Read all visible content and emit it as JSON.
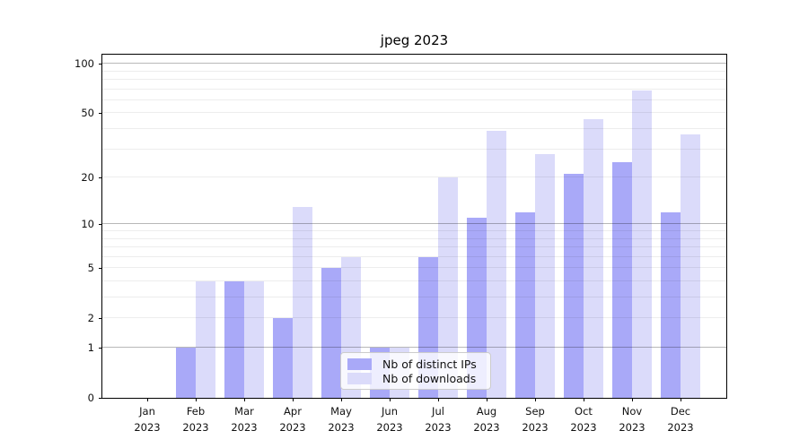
{
  "header": {
    "title": "jpeg 2023"
  },
  "chart_data": {
    "type": "bar",
    "title": "jpeg 2023",
    "categories": [
      {
        "month": "Jan",
        "year": "2023"
      },
      {
        "month": "Feb",
        "year": "2023"
      },
      {
        "month": "Mar",
        "year": "2023"
      },
      {
        "month": "Apr",
        "year": "2023"
      },
      {
        "month": "May",
        "year": "2023"
      },
      {
        "month": "Jun",
        "year": "2023"
      },
      {
        "month": "Jul",
        "year": "2023"
      },
      {
        "month": "Aug",
        "year": "2023"
      },
      {
        "month": "Sep",
        "year": "2023"
      },
      {
        "month": "Oct",
        "year": "2023"
      },
      {
        "month": "Nov",
        "year": "2023"
      },
      {
        "month": "Dec",
        "year": "2023"
      }
    ],
    "series": [
      {
        "name": "Nb of distinct IPs",
        "color": "#a9a9f8",
        "values": [
          0,
          1,
          4,
          2,
          5,
          1,
          6,
          11,
          12,
          21,
          25,
          12
        ]
      },
      {
        "name": "Nb of downloads",
        "color": "#dbdbfa",
        "values": [
          0,
          4,
          4,
          13,
          6,
          1,
          20,
          39,
          28,
          46,
          69,
          37
        ]
      }
    ],
    "xlabel": "",
    "ylabel": "",
    "y_scale": "log10(1+v)",
    "y_ticks": [
      0,
      1,
      2,
      5,
      10,
      20,
      50,
      100
    ],
    "y_major_gridlines": [
      1,
      10,
      100
    ],
    "y_minor_gridlines": [
      2,
      3,
      4,
      5,
      6,
      7,
      8,
      9,
      20,
      30,
      40,
      50,
      60,
      70,
      80,
      90
    ],
    "ylim": [
      0,
      113.5
    ],
    "grid": true,
    "legend_position": "lower center-left inside plot"
  }
}
